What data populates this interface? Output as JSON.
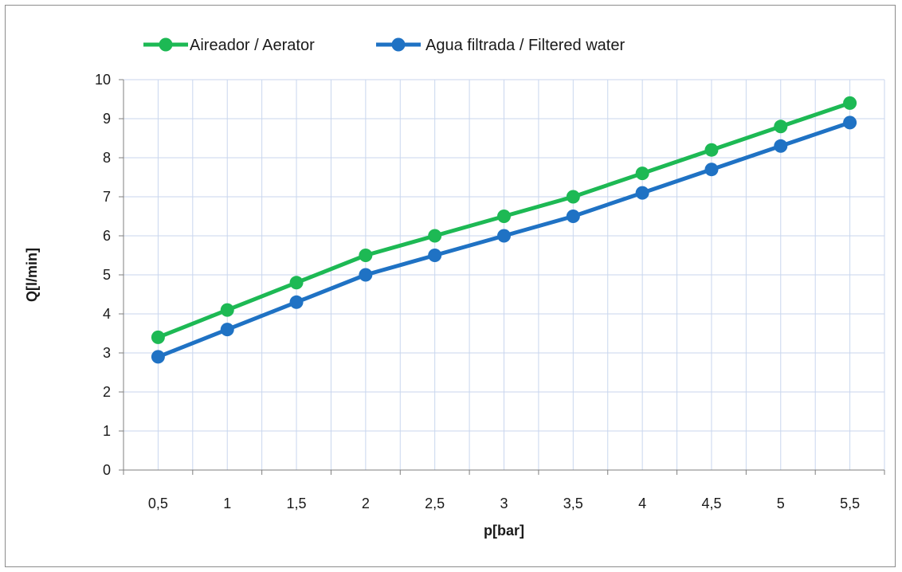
{
  "chart_data": {
    "type": "line",
    "x": [
      "0,5",
      "1",
      "1,5",
      "2",
      "2,5",
      "3",
      "3,5",
      "4",
      "4,5",
      "5",
      "5,5"
    ],
    "series": [
      {
        "name": "Aireador / Aerator",
        "color": "#1db954",
        "values": [
          3.4,
          4.1,
          4.8,
          5.5,
          6.0,
          6.5,
          7.0,
          7.6,
          8.2,
          8.8,
          9.4
        ]
      },
      {
        "name": "Agua filtrada / Filtered water",
        "color": "#1f72c4",
        "values": [
          2.9,
          3.6,
          4.3,
          5.0,
          5.5,
          6.0,
          6.5,
          7.1,
          7.7,
          8.3,
          8.9
        ]
      }
    ],
    "xlabel": "p[bar]",
    "ylabel": "Q[l/min]",
    "ylim": [
      0,
      10
    ],
    "yticks": [
      "0",
      "1",
      "2",
      "3",
      "4",
      "5",
      "6",
      "7",
      "8",
      "9",
      "10"
    ],
    "grid": true,
    "legend_position": "top"
  }
}
